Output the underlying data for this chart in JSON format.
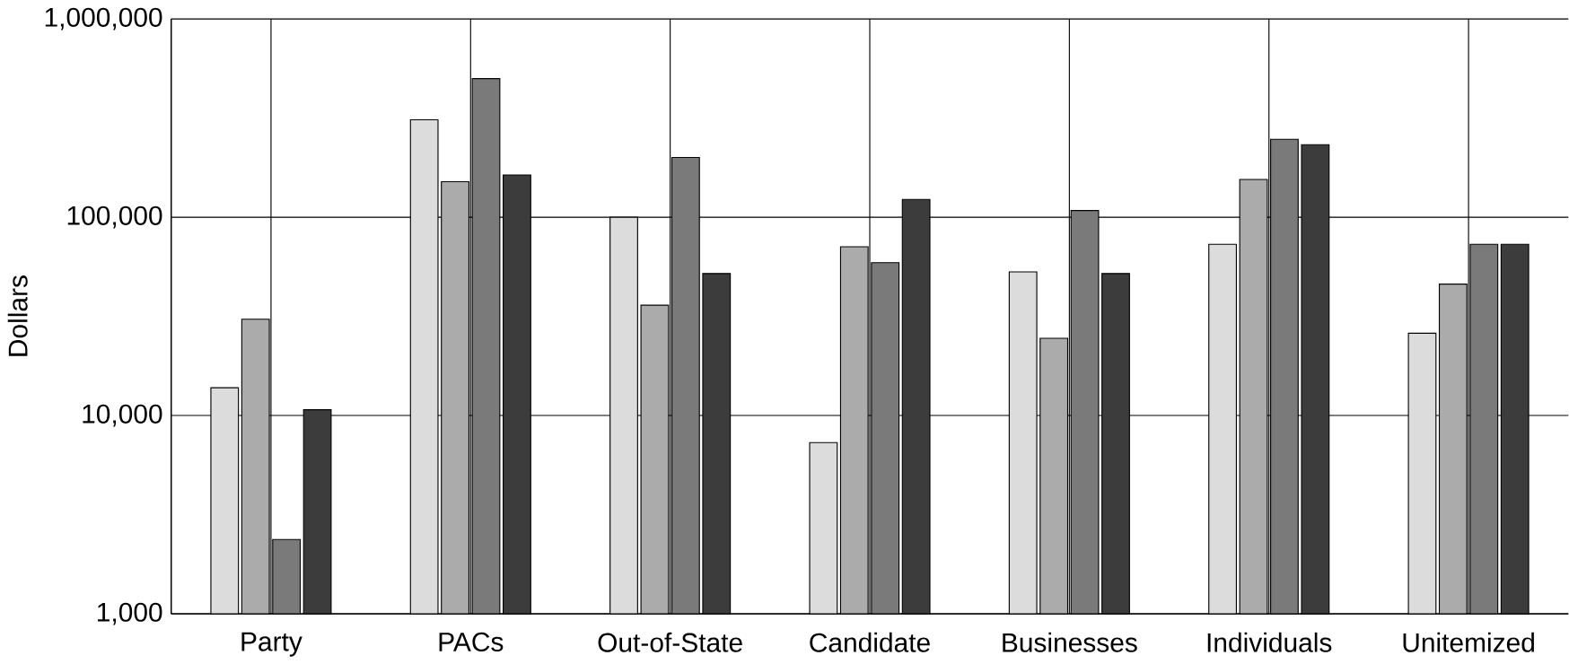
{
  "chart_data": {
    "type": "bar",
    "ylabel": "Dollars",
    "categories": [
      "Party",
      "PACs",
      "Out-of-State",
      "Candidate",
      "Businesses",
      "Individuals",
      "Unitemized"
    ],
    "series": [
      {
        "color": "#dcdcdc",
        "values": [
          13800,
          310000,
          100000,
          7300,
          53000,
          73000,
          26000
        ]
      },
      {
        "color": "#ababab",
        "values": [
          30600,
          151000,
          36000,
          71000,
          24500,
          155000,
          46000
        ]
      },
      {
        "color": "#7a7a7a",
        "values": [
          2370,
          500000,
          200000,
          59000,
          108000,
          247000,
          73000
        ]
      },
      {
        "color": "#3c3c3c",
        "values": [
          10700,
          163000,
          52000,
          123000,
          52000,
          232000,
          73000
        ]
      }
    ],
    "log": "y",
    "ylim": [
      1000,
      1000000
    ],
    "yticks": [
      {
        "value": 1000,
        "label": "1,000"
      },
      {
        "value": 10000,
        "label": "10,000"
      },
      {
        "value": 100000,
        "label": "100,000"
      },
      {
        "value": 1000000,
        "label": "1,000,000"
      }
    ],
    "grid": true
  }
}
